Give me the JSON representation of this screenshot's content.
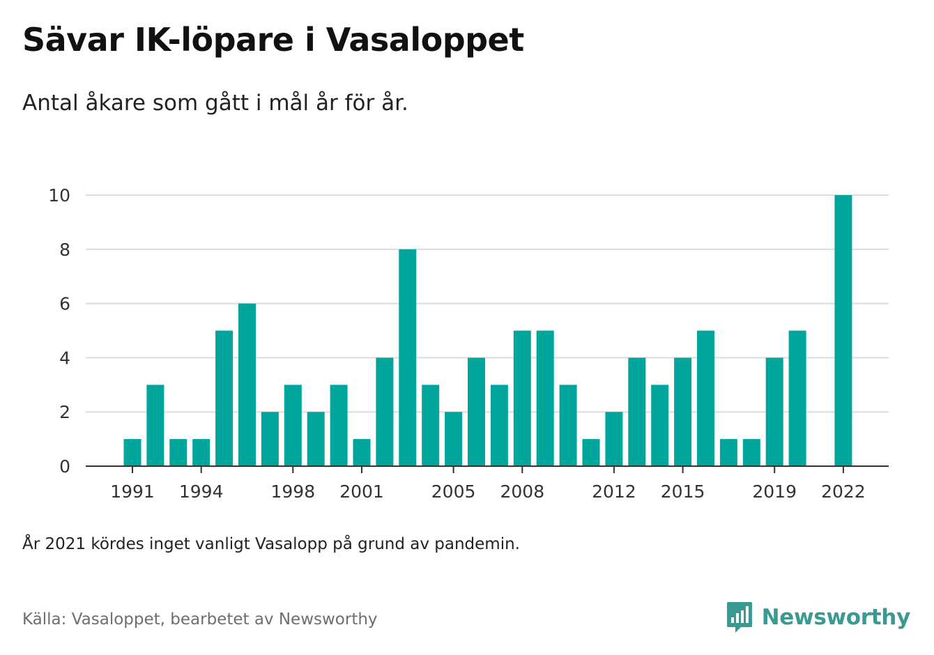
{
  "header": {
    "title": "Sävar IK-löpare i Vasaloppet",
    "subtitle": "Antal åkare som gått i mål år för år."
  },
  "chart_data": {
    "type": "bar",
    "title": "Sävar IK-löpare i Vasaloppet",
    "subtitle": "Antal åkare som gått i mål år för år.",
    "categories": [
      1991,
      1992,
      1993,
      1994,
      1995,
      1996,
      1997,
      1998,
      1999,
      2000,
      2001,
      2002,
      2003,
      2004,
      2005,
      2006,
      2007,
      2008,
      2009,
      2010,
      2011,
      2012,
      2013,
      2014,
      2015,
      2016,
      2017,
      2018,
      2019,
      2020,
      2021,
      2022
    ],
    "values": [
      1,
      3,
      1,
      1,
      5,
      6,
      2,
      3,
      2,
      3,
      1,
      4,
      8,
      3,
      2,
      4,
      3,
      5,
      5,
      3,
      1,
      2,
      4,
      3,
      4,
      5,
      1,
      1,
      4,
      5,
      null,
      10
    ],
    "x_tick_labels": [
      1991,
      1994,
      1998,
      2001,
      2005,
      2008,
      2012,
      2015,
      2019,
      2022
    ],
    "y_ticks": [
      0,
      2,
      4,
      6,
      8,
      10
    ],
    "ylim": [
      0,
      10
    ],
    "xlabel": "",
    "ylabel": "",
    "grid": true,
    "bar_color": "#00a69c"
  },
  "footer": {
    "note": "År 2021 kördes inget vanligt Vasalopp på grund av pandemin.",
    "source": "Källa: Vasaloppet, bearbetet av Newsworthy",
    "brand": "Newsworthy",
    "brand_color": "#3a9a92",
    "brand_icon": "newsworthy-logo-icon"
  }
}
